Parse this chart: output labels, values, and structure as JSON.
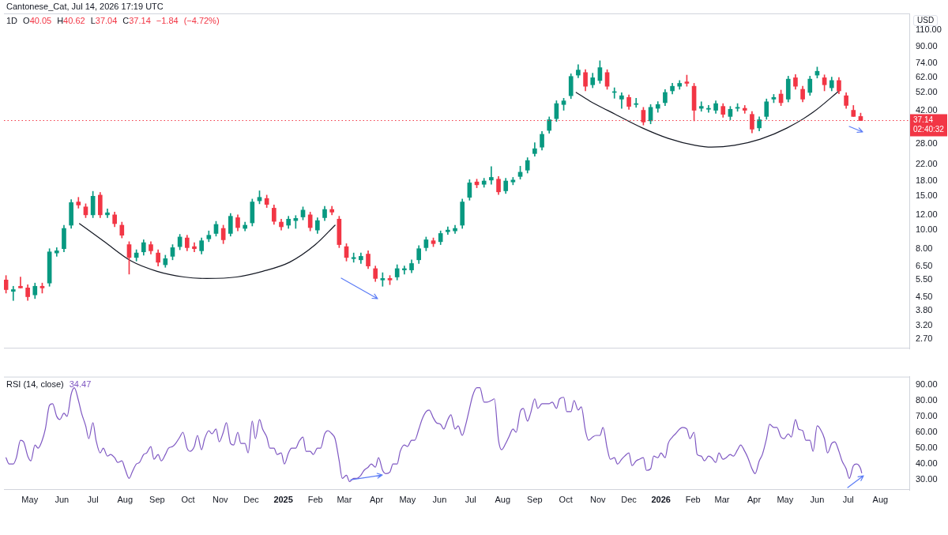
{
  "chart_data": [
    {
      "type": "candlestick",
      "title": "1D",
      "subtitle": "O40.05 H40.62 L37.04 C37.14 −1.84 (−4.72%)",
      "ylabel": "USD",
      "annotations": [
        "Cantonese_Cat, Jul 14, 2026 17:19 UTC"
      ],
      "x": [
        "2024-04-08",
        "2024-04-15",
        "2024-04-22",
        "2024-04-29",
        "2024-05-06",
        "2024-05-13",
        "2024-05-20",
        "2024-05-27",
        "2024-06-03",
        "2024-06-10",
        "2024-06-17",
        "2024-06-24",
        "2024-07-01",
        "2024-07-08",
        "2024-07-15",
        "2024-07-22",
        "2024-07-29",
        "2024-08-05",
        "2024-08-12",
        "2024-08-19",
        "2024-08-26",
        "2024-09-02",
        "2024-09-09",
        "2024-09-16",
        "2024-09-23",
        "2024-09-30",
        "2024-10-07",
        "2024-10-14",
        "2024-10-21",
        "2024-10-28",
        "2024-11-04",
        "2024-11-11",
        "2024-11-18",
        "2024-11-25",
        "2024-12-02",
        "2024-12-09",
        "2024-12-16",
        "2024-12-23",
        "2024-12-30",
        "2025-01-06",
        "2025-01-13",
        "2025-01-20",
        "2025-01-27",
        "2025-02-03",
        "2025-02-10",
        "2025-02-17",
        "2025-02-24",
        "2025-03-03",
        "2025-03-10",
        "2025-03-17",
        "2025-03-24",
        "2025-03-31",
        "2025-04-07",
        "2025-04-14",
        "2025-04-21",
        "2025-04-28",
        "2025-05-05",
        "2025-05-12",
        "2025-05-19",
        "2025-05-26",
        "2025-06-02",
        "2025-06-09",
        "2025-06-16",
        "2025-06-23",
        "2025-06-30",
        "2025-07-07",
        "2025-07-14",
        "2025-07-21",
        "2025-07-28",
        "2025-08-04",
        "2025-08-11",
        "2025-08-18",
        "2025-08-25",
        "2025-09-01",
        "2025-09-08",
        "2025-09-15",
        "2025-09-22",
        "2025-09-29",
        "2025-10-06",
        "2025-10-13",
        "2025-10-20",
        "2025-10-27",
        "2025-11-03",
        "2025-11-10",
        "2025-11-17",
        "2025-11-24",
        "2025-12-01",
        "2025-12-08",
        "2025-12-15",
        "2025-12-22",
        "2025-12-29",
        "2026-01-05",
        "2026-01-12",
        "2026-01-19",
        "2026-01-26",
        "2026-02-02",
        "2026-02-09",
        "2026-02-16",
        "2026-02-23",
        "2026-03-02",
        "2026-03-09",
        "2026-03-16",
        "2026-03-23",
        "2026-03-30",
        "2026-04-06",
        "2026-04-13",
        "2026-04-20",
        "2026-04-27",
        "2026-05-04",
        "2026-05-11",
        "2026-05-18",
        "2026-05-25",
        "2026-06-01",
        "2026-06-08",
        "2026-06-15",
        "2026-06-22",
        "2026-06-29",
        "2026-07-06",
        "2026-07-13"
      ],
      "ohlc": [
        [
          5.5,
          5.8,
          4.7,
          4.9
        ],
        [
          4.8,
          5.1,
          4.3,
          4.9
        ],
        [
          5.1,
          5.7,
          5.0,
          5.0
        ],
        [
          5.0,
          5.2,
          4.3,
          4.5
        ],
        [
          4.6,
          5.3,
          4.4,
          5.1
        ],
        [
          5.1,
          5.3,
          4.7,
          5.0
        ],
        [
          5.3,
          8.0,
          5.1,
          7.7
        ],
        [
          7.6,
          8.1,
          7.3,
          7.8
        ],
        [
          8.0,
          10.6,
          7.7,
          10.2
        ],
        [
          10.6,
          14.4,
          10.2,
          13.9
        ],
        [
          14.0,
          14.8,
          13.0,
          13.5
        ],
        [
          13.2,
          13.7,
          11.6,
          12.0
        ],
        [
          12.0,
          15.9,
          11.6,
          15.0
        ],
        [
          15.2,
          15.7,
          11.6,
          12.0
        ],
        [
          12.0,
          12.9,
          11.6,
          12.3
        ],
        [
          12.0,
          12.4,
          10.4,
          10.8
        ],
        [
          10.6,
          11.0,
          9.1,
          9.4
        ],
        [
          8.4,
          8.7,
          5.9,
          7.2
        ],
        [
          7.2,
          7.9,
          6.9,
          7.6
        ],
        [
          7.7,
          8.9,
          7.4,
          8.6
        ],
        [
          8.4,
          8.7,
          7.5,
          7.8
        ],
        [
          7.6,
          7.9,
          6.5,
          6.8
        ],
        [
          6.6,
          7.4,
          6.4,
          7.1
        ],
        [
          7.3,
          8.4,
          7.0,
          8.1
        ],
        [
          8.2,
          9.5,
          7.9,
          9.2
        ],
        [
          9.1,
          9.4,
          7.8,
          8.1
        ],
        [
          8.2,
          8.6,
          7.7,
          8.0
        ],
        [
          7.8,
          9.1,
          7.5,
          8.8
        ],
        [
          9.0,
          9.9,
          8.7,
          9.4
        ],
        [
          9.6,
          11.1,
          9.3,
          10.7
        ],
        [
          10.2,
          10.6,
          8.5,
          8.9
        ],
        [
          9.6,
          12.2,
          9.3,
          11.8
        ],
        [
          11.6,
          12.0,
          9.9,
          10.3
        ],
        [
          10.2,
          11.0,
          9.9,
          10.6
        ],
        [
          10.9,
          14.5,
          10.5,
          14.0
        ],
        [
          14.2,
          16.0,
          13.7,
          14.8
        ],
        [
          14.6,
          15.2,
          13.1,
          13.6
        ],
        [
          13.0,
          13.5,
          10.7,
          11.1
        ],
        [
          11.0,
          11.4,
          10.0,
          10.4
        ],
        [
          10.6,
          11.8,
          10.2,
          11.4
        ],
        [
          11.2,
          11.9,
          10.2,
          11.5
        ],
        [
          11.7,
          13.2,
          11.3,
          12.7
        ],
        [
          12.0,
          12.4,
          9.9,
          10.3
        ],
        [
          10.0,
          11.6,
          9.6,
          11.2
        ],
        [
          11.6,
          13.3,
          11.2,
          12.8
        ],
        [
          12.8,
          13.3,
          12.0,
          12.4
        ],
        [
          11.4,
          11.8,
          8.1,
          8.4
        ],
        [
          8.2,
          8.5,
          6.9,
          7.2
        ],
        [
          7.1,
          7.6,
          6.8,
          7.2
        ],
        [
          7.0,
          7.6,
          6.7,
          7.3
        ],
        [
          7.5,
          7.8,
          6.3,
          6.5
        ],
        [
          6.3,
          6.5,
          5.4,
          5.6
        ],
        [
          5.5,
          6.0,
          5.1,
          5.6
        ],
        [
          5.6,
          5.8,
          5.2,
          5.5
        ],
        [
          5.7,
          6.6,
          5.5,
          6.3
        ],
        [
          6.2,
          6.5,
          5.9,
          6.3
        ],
        [
          6.2,
          7.0,
          6.0,
          6.7
        ],
        [
          7.0,
          8.3,
          6.7,
          8.0
        ],
        [
          8.1,
          9.2,
          7.8,
          8.9
        ],
        [
          8.8,
          9.1,
          8.2,
          8.5
        ],
        [
          8.7,
          9.9,
          8.4,
          9.6
        ],
        [
          9.8,
          10.4,
          9.5,
          10.0
        ],
        [
          9.9,
          10.6,
          9.6,
          10.2
        ],
        [
          10.6,
          14.5,
          10.2,
          14.0
        ],
        [
          14.8,
          18.3,
          14.3,
          17.6
        ],
        [
          17.8,
          18.4,
          16.6,
          17.2
        ],
        [
          17.3,
          18.6,
          16.7,
          18.0
        ],
        [
          18.2,
          21.4,
          17.3,
          18.8
        ],
        [
          18.4,
          19.0,
          15.3,
          15.8
        ],
        [
          16.0,
          18.6,
          15.5,
          18.0
        ],
        [
          17.8,
          18.8,
          17.2,
          18.2
        ],
        [
          19.0,
          21.5,
          18.4,
          20.0
        ],
        [
          20.5,
          23.8,
          19.8,
          23.0
        ],
        [
          25.0,
          28.5,
          24.2,
          26.5
        ],
        [
          27.0,
          32.6,
          26.1,
          31.5
        ],
        [
          33.0,
          38.8,
          31.9,
          37.5
        ],
        [
          38.0,
          47.1,
          36.7,
          45.5
        ],
        [
          45.0,
          48.5,
          42.0,
          47.0
        ],
        [
          50.0,
          65.0,
          48.3,
          63.0
        ],
        [
          64.0,
          72.5,
          62.0,
          68.0
        ],
        [
          66.0,
          68.3,
          53.0,
          56.0
        ],
        [
          57.0,
          65.5,
          55.0,
          62.0
        ],
        [
          60.0,
          76.0,
          58.0,
          70.0
        ],
        [
          66.0,
          68.3,
          54.0,
          56.0
        ],
        [
          52.0,
          55.0,
          48.5,
          52.5
        ],
        [
          48.0,
          51.8,
          43.0,
          50.0
        ],
        [
          49.0,
          50.5,
          42.5,
          44.0
        ],
        [
          45.0,
          48.5,
          43.5,
          45.5
        ],
        [
          42.0,
          43.5,
          35.2,
          36.5
        ],
        [
          37.0,
          45.0,
          35.7,
          43.5
        ],
        [
          43.0,
          46.6,
          41.0,
          45.0
        ],
        [
          46.0,
          53.8,
          44.4,
          52.0
        ],
        [
          53.0,
          58.0,
          51.0,
          56.0
        ],
        [
          56.0,
          60.0,
          54.0,
          58.0
        ],
        [
          59.0,
          64.0,
          56.0,
          58.0
        ],
        [
          56.0,
          58.0,
          37.0,
          42.0
        ],
        [
          43.0,
          46.5,
          41.5,
          44.0
        ],
        [
          42.5,
          44.5,
          41.0,
          43.0
        ],
        [
          42.0,
          47.0,
          40.5,
          45.5
        ],
        [
          44.0,
          45.5,
          38.6,
          40.0
        ],
        [
          39.0,
          44.0,
          37.5,
          42.5
        ],
        [
          43.0,
          45.5,
          41.5,
          43.5
        ],
        [
          43.0,
          44.5,
          40.5,
          42.0
        ],
        [
          40.0,
          41.4,
          32.0,
          33.5
        ],
        [
          34.0,
          38.8,
          32.8,
          37.5
        ],
        [
          39.0,
          48.1,
          37.7,
          46.5
        ],
        [
          48.0,
          50.8,
          46.0,
          49.0
        ],
        [
          51.0,
          53.5,
          44.4,
          46.0
        ],
        [
          48.0,
          63.2,
          46.4,
          61.0
        ],
        [
          62.0,
          64.5,
          54.0,
          56.0
        ],
        [
          54.0,
          56.0,
          46.5,
          48.0
        ],
        [
          52.0,
          63.2,
          50.2,
          61.0
        ],
        [
          64.0,
          70.5,
          61.8,
          67.0
        ],
        [
          62.0,
          64.2,
          53.0,
          57.0
        ],
        [
          55.0,
          62.5,
          53.0,
          60.0
        ],
        [
          60.0,
          62.2,
          51.2,
          53.0
        ],
        [
          50.0,
          51.8,
          43.0,
          44.5
        ],
        [
          42.0,
          44.5,
          39.0,
          39.0
        ],
        [
          39.0,
          40.6,
          37.14,
          37.14
        ]
      ],
      "colors": [
        "#f23645",
        "#089981",
        "#f23645",
        "#f23645",
        "#089981",
        "#f23645",
        "#089981",
        "#089981",
        "#089981",
        "#089981",
        "#f23645",
        "#f23645",
        "#089981",
        "#f23645",
        "#089981",
        "#f23645",
        "#f23645",
        "#f23645",
        "#089981",
        "#089981",
        "#f23645",
        "#f23645",
        "#089981",
        "#089981",
        "#089981",
        "#f23645",
        "#f23645",
        "#089981",
        "#089981",
        "#089981",
        "#f23645",
        "#089981",
        "#f23645",
        "#089981",
        "#089981",
        "#089981",
        "#f23645",
        "#f23645",
        "#f23645",
        "#089981",
        "#089981",
        "#089981",
        "#f23645",
        "#089981",
        "#089981",
        "#f23645",
        "#f23645",
        "#f23645",
        "#089981",
        "#089981",
        "#f23645",
        "#f23645",
        "#089981",
        "#f23645",
        "#089981",
        "#089981",
        "#089981",
        "#089981",
        "#089981",
        "#f23645",
        "#089981",
        "#089981",
        "#089981",
        "#089981",
        "#089981",
        "#f23645",
        "#089981",
        "#089981",
        "#f23645",
        "#089981",
        "#089981",
        "#089981",
        "#089981",
        "#089981",
        "#089981",
        "#089981",
        "#089981",
        "#089981",
        "#089981",
        "#089981",
        "#f23645",
        "#089981",
        "#089981",
        "#f23645",
        "#089981",
        "#089981",
        "#f23645",
        "#089981",
        "#f23645",
        "#089981",
        "#089981",
        "#089981",
        "#089981",
        "#089981",
        "#f23645",
        "#f23645",
        "#089981",
        "#089981",
        "#089981",
        "#f23645",
        "#089981",
        "#089981",
        "#f23645",
        "#f23645",
        "#089981",
        "#089981",
        "#089981",
        "#f23645",
        "#089981",
        "#f23645",
        "#f23645",
        "#089981",
        "#089981",
        "#f23645",
        "#089981",
        "#f23645",
        "#f23645",
        "#f23645",
        "#f23645"
      ],
      "series": [
        {
          "type": "line",
          "color": "#131722",
          "x": [
            "2024-06-18",
            "2024-07-12",
            "2024-08-07",
            "2024-09-01",
            "2024-09-27",
            "2024-10-19",
            "2024-11-17",
            "2024-12-12",
            "2025-01-07",
            "2025-02-01",
            "2025-02-20"
          ],
          "values": [
            10.8,
            8.7,
            6.9,
            6.1,
            5.7,
            5.6,
            5.7,
            6.1,
            6.8,
            8.4,
            10.6
          ]
        },
        {
          "type": "line",
          "color": "#131722",
          "x": [
            "2025-10-11",
            "2025-10-24",
            "2025-11-18",
            "2025-12-14",
            "2026-01-08",
            "2026-02-03",
            "2026-02-19",
            "2026-03-13",
            "2026-04-07",
            "2026-05-03",
            "2026-05-28",
            "2026-06-23"
          ],
          "values": [
            52,
            47,
            40,
            34,
            30,
            27.6,
            27,
            27.6,
            29.7,
            34,
            41,
            53.5
          ]
        }
      ],
      "log": true,
      "xlim": [
        "2024-04-06",
        "2026-08-29"
      ],
      "ylim": [
        2.42,
        134
      ],
      "yticks": [
        {
          "value": 2.7,
          "label": "2.70"
        },
        {
          "value": 3.2,
          "label": "3.20"
        },
        {
          "value": 3.8,
          "label": "3.80"
        },
        {
          "value": 4.5,
          "label": "4.50"
        },
        {
          "value": 5.5,
          "label": "5.50"
        },
        {
          "value": 6.5,
          "label": "6.50"
        },
        {
          "value": 8,
          "label": "8.00"
        },
        {
          "value": 10,
          "label": "10.00"
        },
        {
          "value": 12,
          "label": "12.00"
        },
        {
          "value": 15,
          "label": "15.00"
        },
        {
          "value": 18,
          "label": "18.00"
        },
        {
          "value": 22,
          "label": "22.00"
        },
        {
          "value": 28,
          "label": "28.00"
        },
        {
          "value": 42,
          "label": "42.00"
        },
        {
          "value": 52,
          "label": "52.00"
        },
        {
          "value": 62,
          "label": "62.00"
        },
        {
          "value": 74,
          "label": "74.00"
        },
        {
          "value": 90,
          "label": "90.00"
        },
        {
          "value": 110,
          "label": "110.00"
        }
      ],
      "tick_labels": "y",
      "ref_lines": [
        {
          "axis": "y",
          "value": 37.14,
          "label": "37.14\n02:40:32",
          "color": "#f23645",
          "line_style": "dotted"
        }
      ]
    },
    {
      "type": "line",
      "title": "RSI (14, close)",
      "subtitle": "34.47",
      "series": [
        {
          "color": "#7e57c2",
          "x": [
            "2024-04-08",
            "2024-04-11",
            "2024-04-15",
            "2024-04-18",
            "2024-04-22",
            "2024-04-25",
            "2024-04-29",
            "2024-05-02",
            "2024-05-06",
            "2024-05-09",
            "2024-05-13",
            "2024-05-16",
            "2024-05-20",
            "2024-05-23",
            "2024-05-27",
            "2024-05-30",
            "2024-06-03",
            "2024-06-06",
            "2024-06-10",
            "2024-06-13",
            "2024-06-17",
            "2024-06-20",
            "2024-06-24",
            "2024-06-27",
            "2024-07-01",
            "2024-07-04",
            "2024-07-08",
            "2024-07-11",
            "2024-07-15",
            "2024-07-18",
            "2024-07-22",
            "2024-07-25",
            "2024-07-29",
            "2024-08-01",
            "2024-08-05",
            "2024-08-08",
            "2024-08-12",
            "2024-08-15",
            "2024-08-19",
            "2024-08-22",
            "2024-08-26",
            "2024-08-29",
            "2024-09-02",
            "2024-09-05",
            "2024-09-09",
            "2024-09-12",
            "2024-09-16",
            "2024-09-19",
            "2024-09-23",
            "2024-09-26",
            "2024-09-30",
            "2024-10-03",
            "2024-10-07",
            "2024-10-10",
            "2024-10-14",
            "2024-10-17",
            "2024-10-21",
            "2024-10-24",
            "2024-10-28",
            "2024-10-31",
            "2024-11-04",
            "2024-11-07",
            "2024-11-11",
            "2024-11-14",
            "2024-11-18",
            "2024-11-21",
            "2024-11-25",
            "2024-11-28",
            "2024-12-02",
            "2024-12-05",
            "2024-12-09",
            "2024-12-12",
            "2024-12-16",
            "2024-12-19",
            "2024-12-23",
            "2024-12-26",
            "2024-12-30",
            "2025-01-02",
            "2025-01-06",
            "2025-01-09",
            "2025-01-13",
            "2025-01-16",
            "2025-01-20",
            "2025-01-23",
            "2025-01-27",
            "2025-01-30",
            "2025-02-03",
            "2025-02-06",
            "2025-02-10",
            "2025-02-13",
            "2025-02-17",
            "2025-02-20",
            "2025-02-24",
            "2025-02-27",
            "2025-03-03",
            "2025-03-06",
            "2025-03-10",
            "2025-03-13",
            "2025-03-17",
            "2025-03-20",
            "2025-03-24",
            "2025-03-27",
            "2025-03-31",
            "2025-04-03",
            "2025-04-07",
            "2025-04-10",
            "2025-04-14",
            "2025-04-17",
            "2025-04-21",
            "2025-04-24",
            "2025-04-28",
            "2025-05-01",
            "2025-05-05",
            "2025-05-08",
            "2025-05-12",
            "2025-05-15",
            "2025-05-19",
            "2025-05-22",
            "2025-05-26",
            "2025-05-29",
            "2025-06-02",
            "2025-06-05",
            "2025-06-09",
            "2025-06-12",
            "2025-06-16",
            "2025-06-19",
            "2025-06-23",
            "2025-06-26",
            "2025-06-30",
            "2025-07-03",
            "2025-07-07",
            "2025-07-10",
            "2025-07-14",
            "2025-07-17",
            "2025-07-21",
            "2025-07-24",
            "2025-07-28",
            "2025-07-31",
            "2025-08-04",
            "2025-08-07",
            "2025-08-11",
            "2025-08-14",
            "2025-08-18",
            "2025-08-21",
            "2025-08-25",
            "2025-08-28",
            "2025-09-01",
            "2025-09-04",
            "2025-09-08",
            "2025-09-11",
            "2025-09-15",
            "2025-09-18",
            "2025-09-22",
            "2025-09-25",
            "2025-09-29",
            "2025-10-02",
            "2025-10-06",
            "2025-10-09",
            "2025-10-13",
            "2025-10-16",
            "2025-10-20",
            "2025-10-23",
            "2025-10-27",
            "2025-10-30",
            "2025-11-03",
            "2025-11-06",
            "2025-11-10",
            "2025-11-13",
            "2025-11-17",
            "2025-11-20",
            "2025-11-24",
            "2025-11-27",
            "2025-12-01",
            "2025-12-04",
            "2025-12-08",
            "2025-12-11",
            "2025-12-15",
            "2025-12-18",
            "2025-12-22",
            "2025-12-25",
            "2025-12-29",
            "2026-01-01",
            "2026-01-05",
            "2026-01-08",
            "2026-01-12",
            "2026-01-15",
            "2026-01-19",
            "2026-01-22",
            "2026-01-26",
            "2026-01-29",
            "2026-02-02",
            "2026-02-05",
            "2026-02-09",
            "2026-02-12",
            "2026-02-16",
            "2026-02-19",
            "2026-02-23",
            "2026-02-26",
            "2026-03-02",
            "2026-03-05",
            "2026-03-09",
            "2026-03-12",
            "2026-03-16",
            "2026-03-19",
            "2026-03-23",
            "2026-03-26",
            "2026-03-30",
            "2026-04-02",
            "2026-04-06",
            "2026-04-09",
            "2026-04-13",
            "2026-04-16",
            "2026-04-20",
            "2026-04-23",
            "2026-04-27",
            "2026-04-30",
            "2026-05-04",
            "2026-05-07",
            "2026-05-11",
            "2026-05-14",
            "2026-05-18",
            "2026-05-21",
            "2026-05-25",
            "2026-05-28",
            "2026-06-01",
            "2026-06-04",
            "2026-06-08",
            "2026-06-11",
            "2026-06-15",
            "2026-06-18",
            "2026-06-22",
            "2026-06-25",
            "2026-06-29",
            "2026-07-02",
            "2026-07-06",
            "2026-07-09",
            "2026-07-13",
            "2026-07-14"
          ],
          "values": [
            44,
            40,
            40,
            44,
            55,
            54,
            45,
            42,
            52,
            50,
            55,
            62,
            77,
            78,
            70,
            68,
            72,
            70,
            84,
            88,
            80,
            72,
            64,
            56,
            66,
            55,
            47,
            50,
            45,
            46,
            44,
            41,
            42,
            37,
            31,
            35,
            40,
            41,
            46,
            47,
            51,
            43,
            46,
            42,
            46,
            50,
            51,
            53,
            57,
            60,
            50,
            48,
            51,
            58,
            49,
            56,
            61,
            59,
            62,
            54,
            60,
            66,
            53,
            52,
            60,
            53,
            53,
            47,
            67,
            56,
            68,
            62,
            57,
            50,
            50,
            46,
            47,
            40,
            47,
            50,
            50,
            54,
            57,
            48,
            48,
            46,
            50,
            50,
            59,
            61,
            59,
            56,
            42,
            31,
            33,
            29,
            31,
            31,
            33,
            36,
            38,
            40,
            38,
            44,
            36,
            34,
            35,
            40,
            40,
            48,
            52,
            51,
            55,
            55,
            62,
            68,
            73,
            74,
            69,
            66,
            65,
            62,
            68,
            71,
            62,
            64,
            58,
            64,
            75,
            83,
            88,
            88,
            79,
            79,
            80,
            81,
            55,
            49,
            53,
            57,
            62,
            60,
            73,
            75,
            67,
            72,
            81,
            75,
            78,
            78,
            78,
            79,
            75,
            81,
            82,
            73,
            73,
            80,
            74,
            76,
            61,
            55,
            57,
            58,
            58,
            63,
            50,
            43,
            44,
            40,
            43,
            45,
            47,
            39,
            42,
            43,
            44,
            36,
            37,
            45,
            44,
            47,
            44,
            53,
            57,
            59,
            62,
            63,
            62,
            56,
            60,
            46,
            45,
            42,
            45,
            44,
            41,
            47,
            43,
            44,
            46,
            45,
            49,
            52,
            48,
            44,
            37,
            34,
            42,
            46,
            56,
            65,
            63,
            63,
            57,
            56,
            59,
            57,
            68,
            62,
            61,
            55,
            55,
            48,
            64,
            62,
            56,
            47,
            53,
            54,
            48,
            42,
            37,
            31,
            39,
            40,
            37,
            34.47
          ]
        }
      ],
      "xlim": [
        "2024-04-06",
        "2026-08-29"
      ],
      "xticks": [
        {
          "value": "2024-05-01",
          "label": "May"
        },
        {
          "value": "2024-06-01",
          "label": "Jun"
        },
        {
          "value": "2024-07-01",
          "label": "Jul"
        },
        {
          "value": "2024-08-01",
          "label": "Aug"
        },
        {
          "value": "2024-09-01",
          "label": "Sep"
        },
        {
          "value": "2024-10-01",
          "label": "Oct"
        },
        {
          "value": "2024-11-01",
          "label": "Nov"
        },
        {
          "value": "2024-12-01",
          "label": "Dec"
        },
        {
          "value": "2025-01-01",
          "label": "2025"
        },
        {
          "value": "2025-02-01",
          "label": "Feb"
        },
        {
          "value": "2025-03-01",
          "label": "Mar"
        },
        {
          "value": "2025-04-01",
          "label": "Apr"
        },
        {
          "value": "2025-05-01",
          "label": "May"
        },
        {
          "value": "2025-06-01",
          "label": "Jun"
        },
        {
          "value": "2025-07-01",
          "label": "Jul"
        },
        {
          "value": "2025-08-01",
          "label": "Aug"
        },
        {
          "value": "2025-09-01",
          "label": "Sep"
        },
        {
          "value": "2025-10-01",
          "label": "Oct"
        },
        {
          "value": "2025-11-01",
          "label": "Nov"
        },
        {
          "value": "2025-12-01",
          "label": "Dec"
        },
        {
          "value": "2026-01-01",
          "label": "2026"
        },
        {
          "value": "2026-02-01",
          "label": "Feb"
        },
        {
          "value": "2026-03-01",
          "label": "Mar"
        },
        {
          "value": "2026-04-01",
          "label": "Apr"
        },
        {
          "value": "2026-05-01",
          "label": "May"
        },
        {
          "value": "2026-06-01",
          "label": "Jun"
        },
        {
          "value": "2026-07-01",
          "label": "Jul"
        },
        {
          "value": "2026-08-01",
          "label": "Aug"
        }
      ],
      "ylim": [
        23.7,
        95
      ],
      "yticks": [
        {
          "value": 30,
          "label": "30.00"
        },
        {
          "value": 40,
          "label": "40.00"
        },
        {
          "value": 50,
          "label": "50.00"
        },
        {
          "value": 60,
          "label": "60.00"
        },
        {
          "value": 70,
          "label": "70.00"
        },
        {
          "value": 80,
          "label": "80.00"
        },
        {
          "value": 90,
          "label": "90.00"
        }
      ]
    }
  ]
}
